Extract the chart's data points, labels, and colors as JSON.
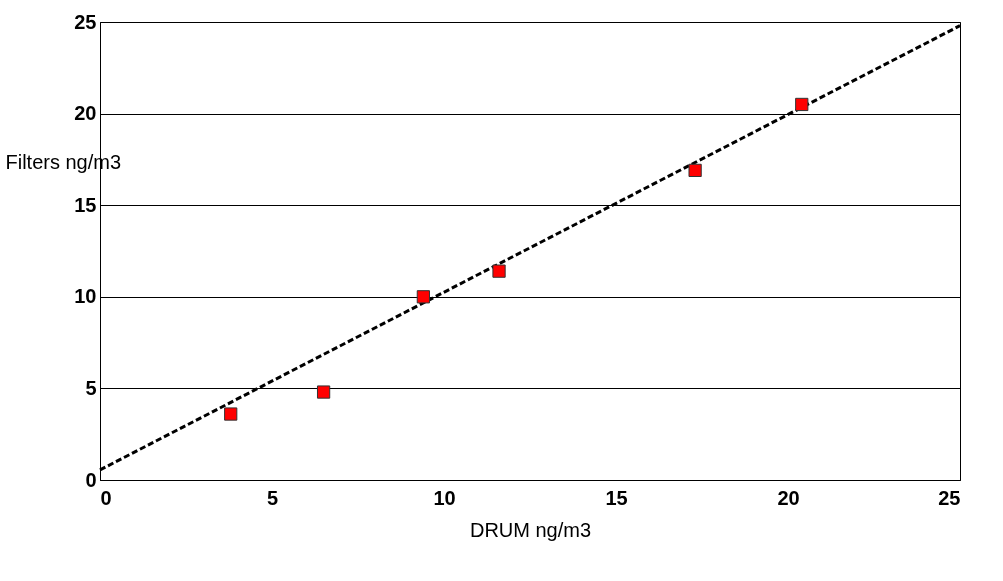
{
  "chart_data": {
    "type": "scatter",
    "xlabel": "DRUM ng/m3",
    "ylabel": "Filters ng/m3",
    "xlim": [
      0,
      25
    ],
    "ylim": [
      0,
      25
    ],
    "xticks": [
      0,
      5,
      10,
      15,
      20,
      25
    ],
    "yticks": [
      0,
      5,
      10,
      15,
      20,
      25
    ],
    "grid": "y",
    "marker": "square",
    "series": [
      {
        "color": "#ff0000",
        "x": [
          3.8,
          6.5,
          9.4,
          11.6,
          17.3,
          20.4
        ],
        "values": [
          3.6,
          4.8,
          10.0,
          11.4,
          16.9,
          20.5
        ]
      },
      {
        "type": "line",
        "color": "#000000",
        "line_style": "dashed",
        "marker": "none",
        "x": [
          0,
          25
        ],
        "values": [
          0.55,
          24.8
        ]
      }
    ]
  }
}
